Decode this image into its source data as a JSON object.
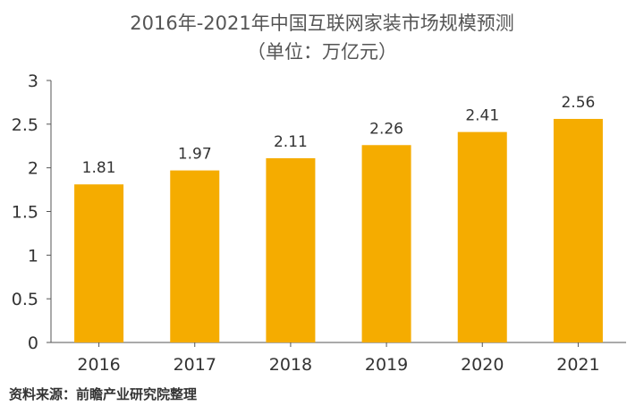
{
  "chart_data": {
    "type": "bar",
    "title": "2016年-2021年中国互联网家装市场规模预测",
    "subtitle": "（单位：万亿元）",
    "categories": [
      "2016",
      "2017",
      "2018",
      "2019",
      "2020",
      "2021"
    ],
    "values": [
      1.81,
      1.97,
      2.11,
      2.26,
      2.41,
      2.56
    ],
    "data_labels": [
      "1.81",
      "1.97",
      "2.11",
      "2.26",
      "2.41",
      "2.56"
    ],
    "y_ticks": [
      "0",
      "0.5",
      "1",
      "1.5",
      "2",
      "2.5",
      "3"
    ],
    "ylim": [
      0,
      3
    ],
    "grid": false,
    "legend": "none",
    "bar_color": "#F5AC00",
    "axis_color": "#555555"
  },
  "source": "资料来源：前瞻产业研究院整理"
}
